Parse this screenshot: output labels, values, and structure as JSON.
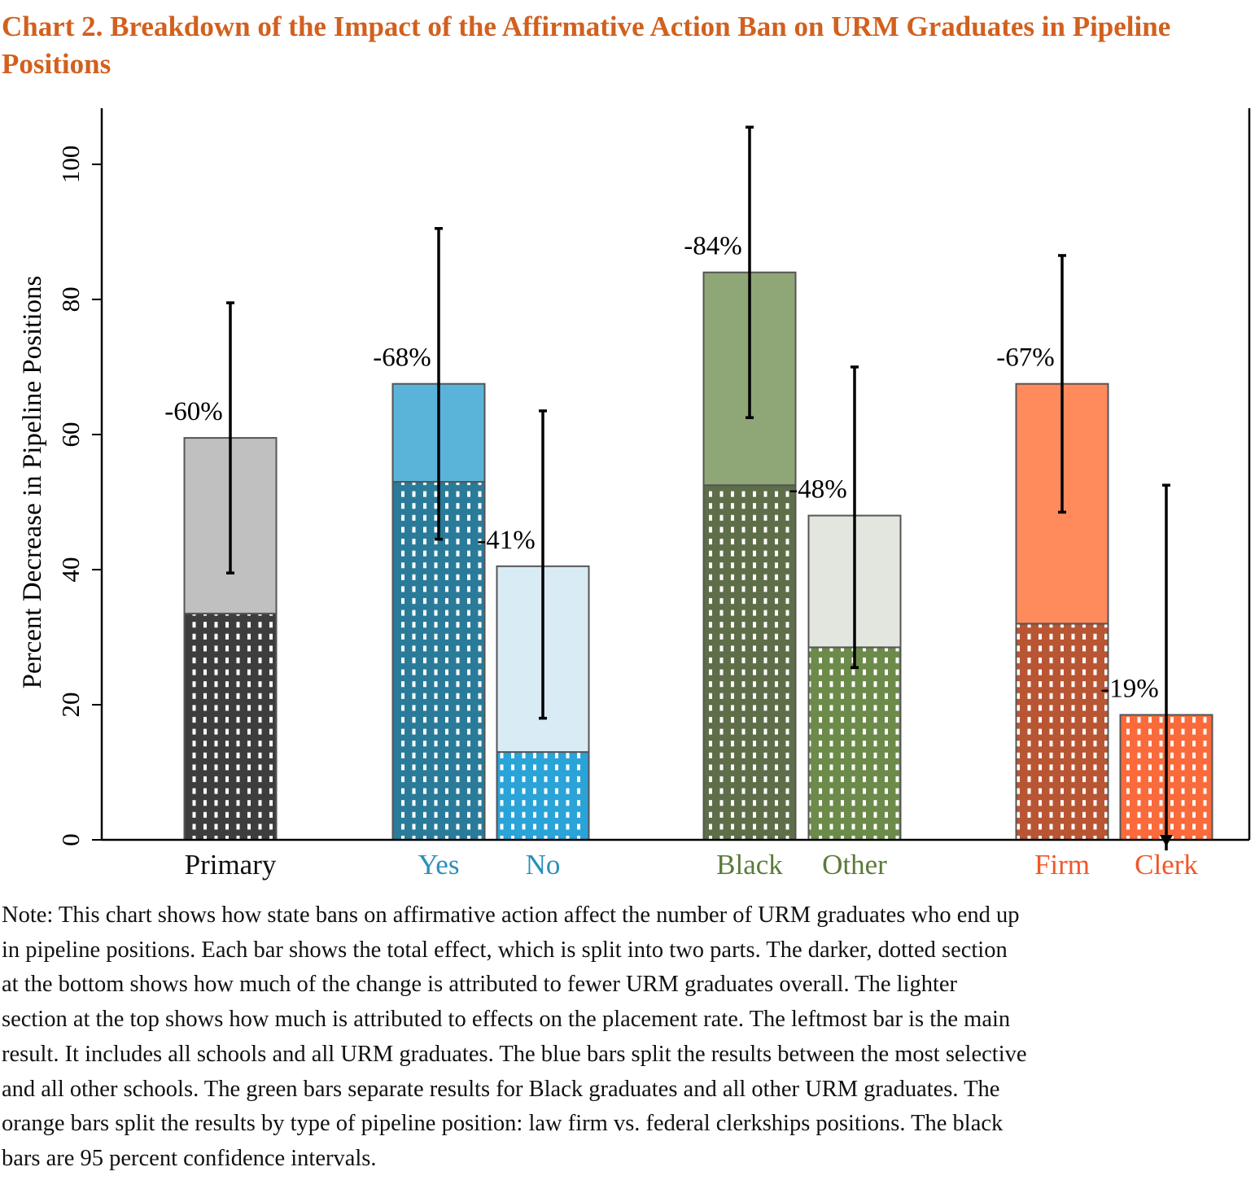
{
  "chart_data": {
    "type": "stacked-bar",
    "title": "Chart 2. Breakdown of the Impact of the Affirmative Action Ban on URM Graduates in Pipeline Positions",
    "ylabel": "Percent Decrease in Pipeline Positions",
    "categories": [
      "Primary",
      "Yes",
      "No",
      "Black",
      "Other",
      "Firm",
      "Clerk"
    ],
    "label_colors": [
      "#111111",
      "#2a8fba",
      "#2a8fba",
      "#5b7a3a",
      "#5b7a3a",
      "#f2572a",
      "#f2572a"
    ],
    "series": [
      {
        "values": [
          33.5,
          53,
          13,
          52.5,
          28.5,
          32,
          18.5
        ],
        "colors": [
          "#3d3d3d",
          "#2a7b99",
          "#2aa3d8",
          "#5e6e49",
          "#6c8a4a",
          "#b85533",
          "#fa6a3a"
        ]
      },
      {
        "values": [
          26,
          14.5,
          27.5,
          31.5,
          19.5,
          35.5,
          null
        ],
        "colors": [
          "#c0c0c0",
          "#5ab4d9",
          "#d9ebf4",
          "#8fa676",
          "#e3e6df",
          "#ff8a5c",
          "#ffb08f"
        ]
      }
    ],
    "annotations": [
      "-60%",
      "-68%",
      "-41%",
      "-84%",
      "-48%",
      "-67%",
      "-19%"
    ],
    "ci_low": [
      39.5,
      44.5,
      18,
      62.5,
      25.5,
      48.5,
      -5
    ],
    "ci_high": [
      79.5,
      90.5,
      63.5,
      105.5,
      70,
      86.5,
      52.5
    ],
    "ylim": [
      0,
      108.3
    ],
    "yticks": [
      0,
      20,
      40,
      60,
      80,
      100
    ],
    "note": [
      "Note: This chart shows how state bans on affirmative action affect the number of URM graduates who end up",
      "in pipeline positions. Each bar shows the total effect, which is split into two parts. The darker, dotted section",
      "at the bottom shows how much of the change is attributed to fewer URM graduates overall. The lighter",
      "section at the top shows how much is attributed to effects on the placement rate. The leftmost bar is the main",
      "result. It includes all schools and all URM graduates. The blue bars split the results between the most selective",
      "and all other schools. The green bars separate results for Black graduates and all other URM graduates. The",
      "orange bars split the results by type of pipeline  position: law firm vs. federal clerkships positions. The black",
      "bars are 95 percent confidence intervals."
    ]
  }
}
